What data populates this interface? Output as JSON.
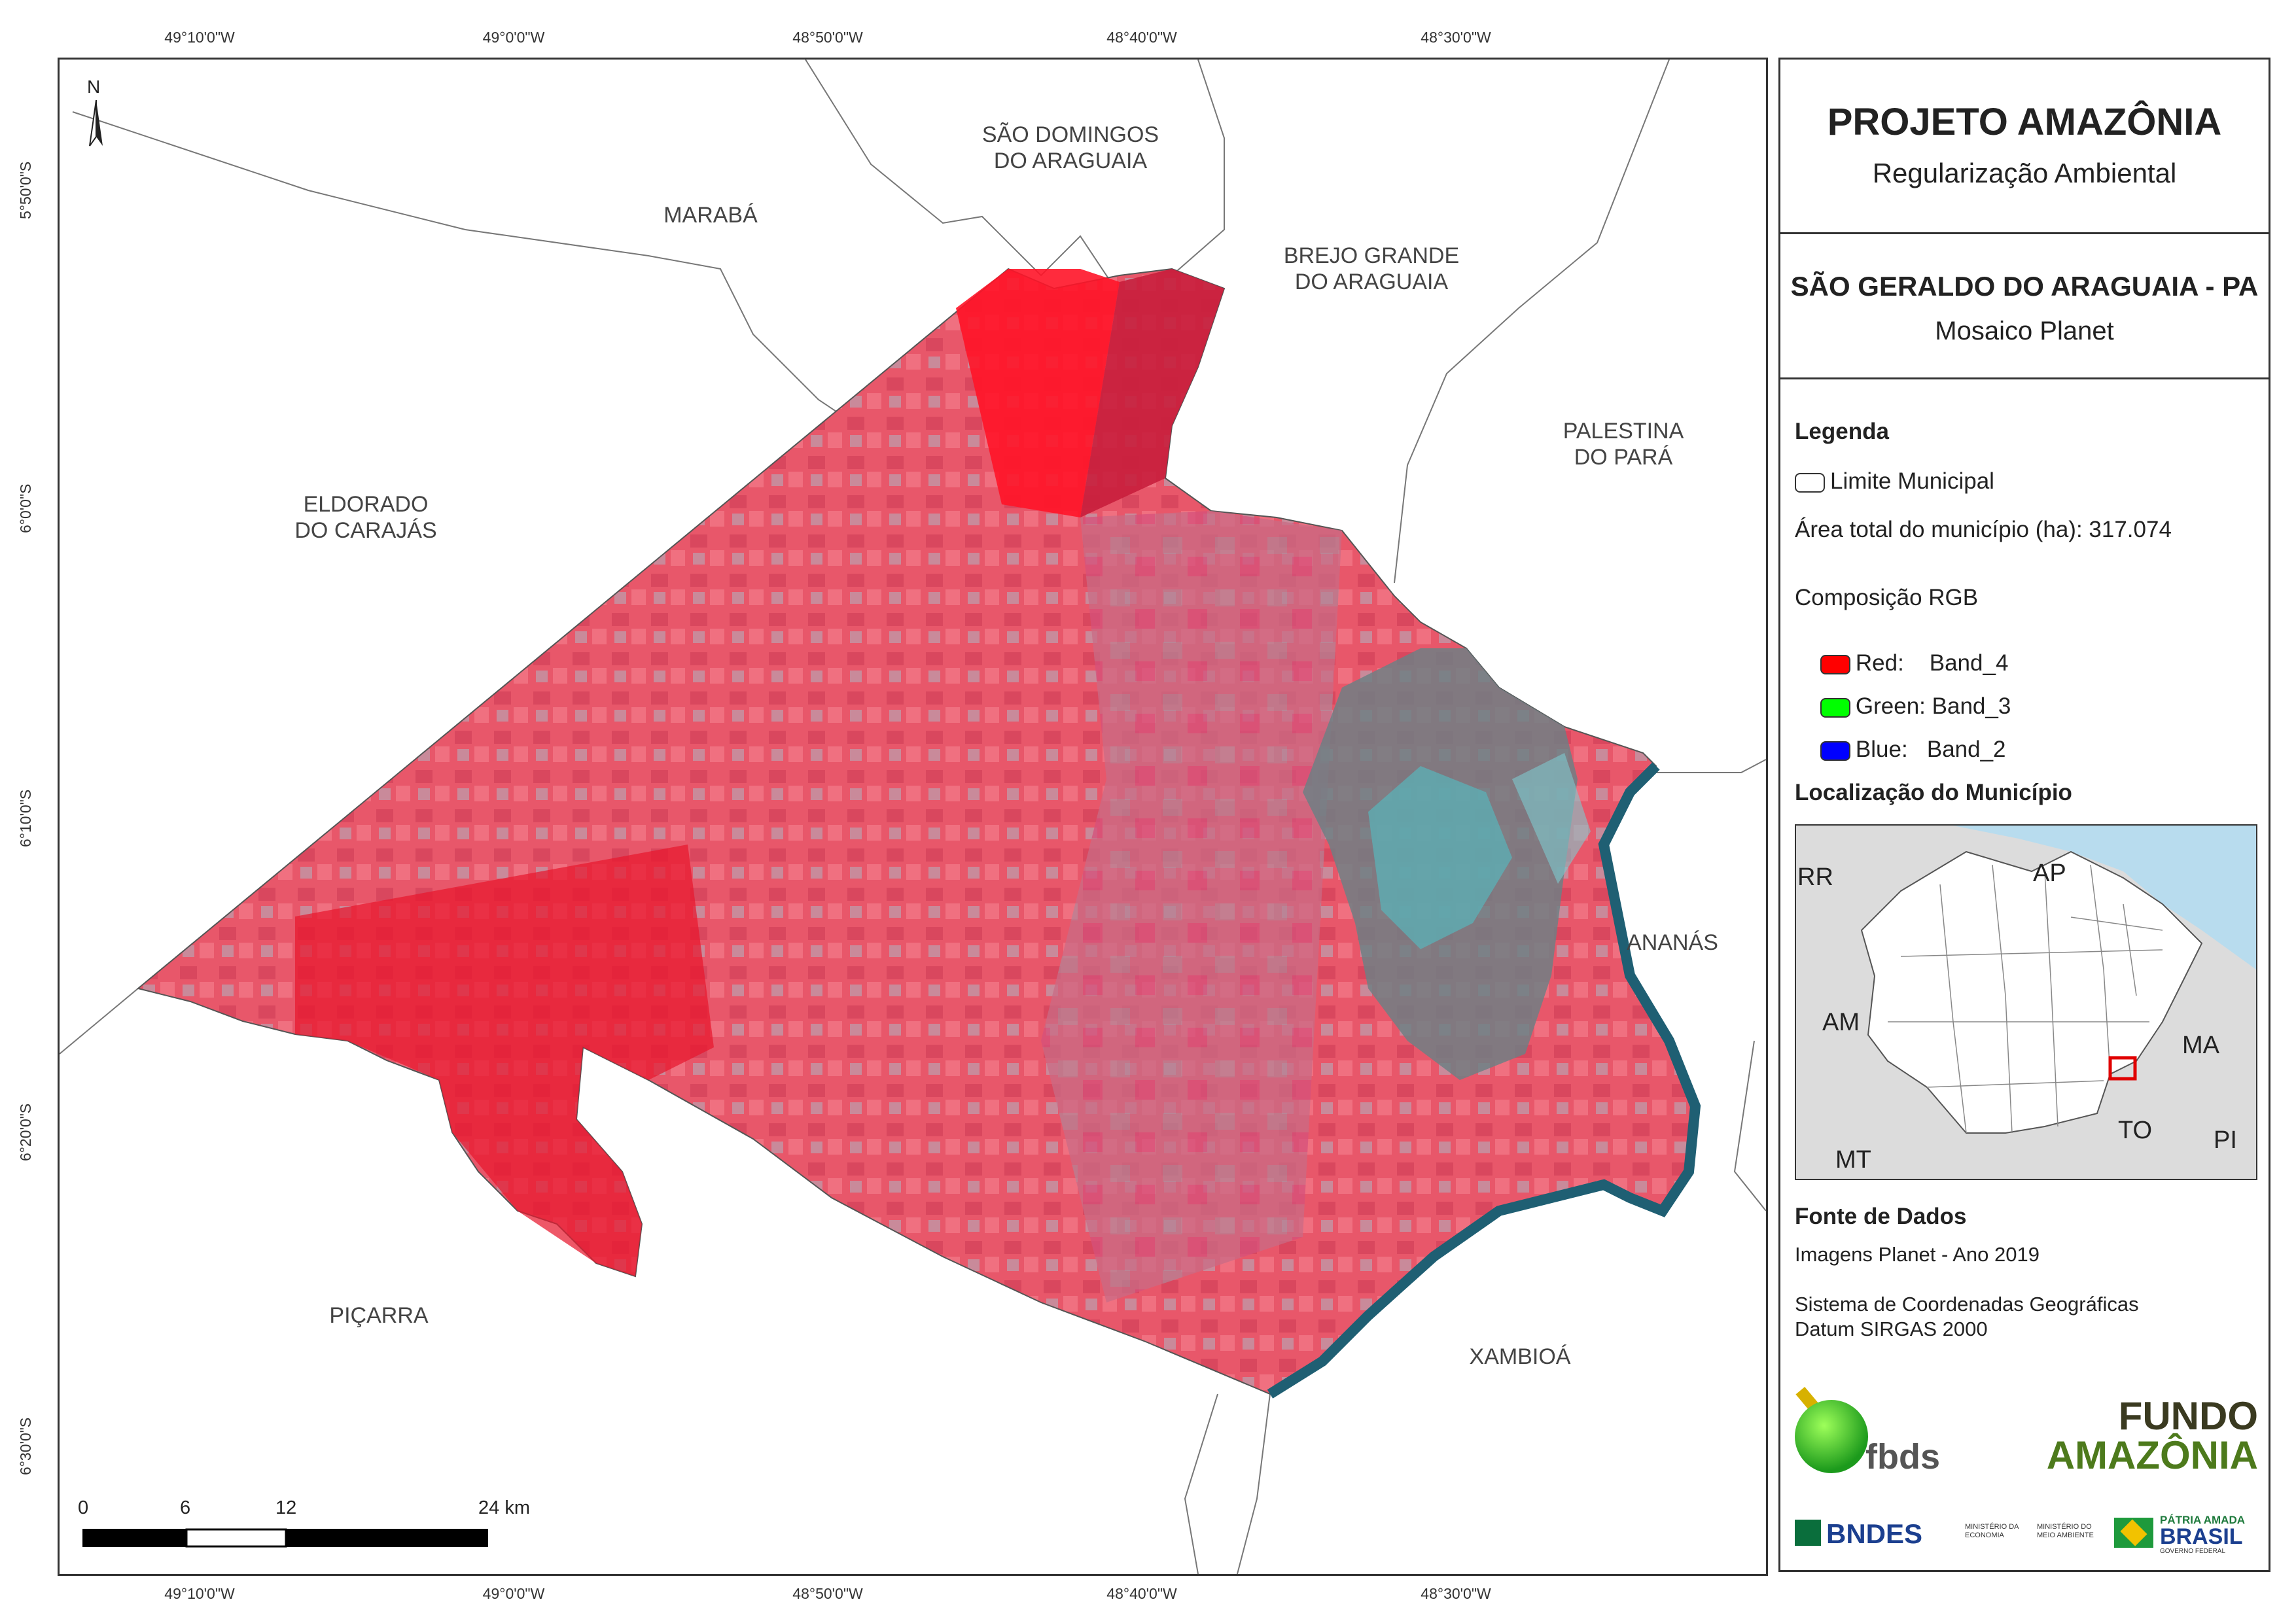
{
  "coords": {
    "top": [
      "49°10'0\"W",
      "49°0'0\"W",
      "48°50'0\"W",
      "48°40'0\"W",
      "48°30'0\"W"
    ],
    "bottom": [
      "49°10'0\"W",
      "49°0'0\"W",
      "48°50'0\"W",
      "48°40'0\"W",
      "48°30'0\"W"
    ],
    "left": [
      "5°50'0\"S",
      "6°0'0\"S",
      "6°10'0\"S",
      "6°20'0\"S",
      "6°30'0\"S"
    ]
  },
  "map": {
    "north_label": "N",
    "municipalities": {
      "sao_domingos": [
        "SÃO DOMINGOS",
        "DO ARAGUAIA"
      ],
      "maraba": [
        "MARABÁ"
      ],
      "brejo_grande": [
        "BREJO GRANDE",
        "DO ARAGUAIA"
      ],
      "palestina": [
        "PALESTINA",
        "DO PARÁ"
      ],
      "eldorado": [
        "ELDORADO",
        "DO CARAJÁS"
      ],
      "ananas": [
        "ANANÁS"
      ],
      "picarra": [
        "PIÇARRA"
      ],
      "xambioa": [
        "XAMBIOÁ"
      ]
    },
    "scale": {
      "labels": [
        "0",
        "6",
        "12",
        "24 km"
      ]
    },
    "colors": {
      "false_color_red": "#e8394a",
      "river": "#1f5f73",
      "boundary": "#777777"
    }
  },
  "panel": {
    "title": "PROJETO AMAZÔNIA",
    "subtitle": "Regularização Ambiental",
    "municipality": "SÃO GERALDO DO ARAGUAIA - PA",
    "mosaic": "Mosaico Planet",
    "legend": {
      "heading": "Legenda",
      "boundary": "Limite Municipal",
      "area": "Área total do município (ha): 317.074",
      "rgb_heading": "Composição RGB",
      "red": "Red:    Band_4",
      "green": "Green: Band_3",
      "blue": "Blue:   Band_2",
      "red_color": "#ff0000",
      "green_color": "#00ff00",
      "blue_color": "#0000ff"
    },
    "location": {
      "heading": "Localização do Município",
      "labels": {
        "rr": "RR",
        "ap": "AP",
        "am": "AM",
        "ma": "MA",
        "to": "TO",
        "mt": "MT",
        "pi": "PI"
      }
    },
    "sources": {
      "heading": "Fonte de Dados",
      "images": "Imagens Planet - Ano 2019",
      "crs": "Sistema de Coordenadas Geográficas",
      "datum": "Datum SIRGAS 2000"
    },
    "logos": {
      "fbds": "fbds",
      "fundo_line1": "FUNDO",
      "fundo_line2": "AMAZÔNIA",
      "bndes": "BNDES",
      "min_economia": "MINISTÉRIO DA ECONOMIA",
      "min_ambiente": "MINISTÉRIO DO MEIO AMBIENTE",
      "patria": "PÁTRIA AMADA",
      "brasil": "BRASIL",
      "governo": "GOVERNO FEDERAL"
    }
  }
}
